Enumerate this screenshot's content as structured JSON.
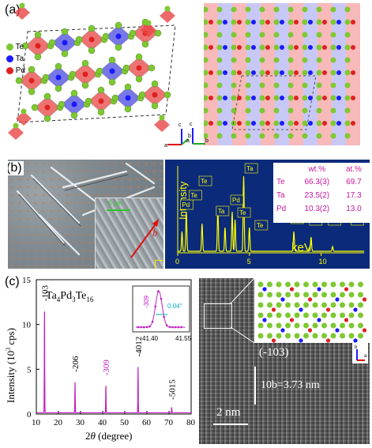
{
  "panel_a": {
    "label": "(a)",
    "legend": [
      {
        "symbol": "Te",
        "color": "#7ec832"
      },
      {
        "symbol": "Ta",
        "color": "#1a1aff"
      },
      {
        "symbol": "Pd",
        "color": "#e02020"
      }
    ],
    "axes_left": {
      "c": "c",
      "b": "b",
      "a": "a"
    },
    "axes_right": {
      "c": "c",
      "b": "b",
      "a": "a"
    }
  },
  "panel_b": {
    "label": "(b)",
    "scale_bar": "5 μm",
    "axis_label": "b",
    "spectrum": {
      "ylabel": "Intensity",
      "xlabel": "keV",
      "ticks": [
        "0",
        "5",
        "10"
      ],
      "peak_labels": [
        "Pd",
        "Te",
        "Te",
        "Ta",
        "Pd",
        "Te",
        "Ta",
        "Te",
        "Ta",
        "Ta",
        "Ta",
        "Ta"
      ],
      "bg_color": "#0b2a7a",
      "trace_color": "#ffff00"
    },
    "table": {
      "headers": [
        "",
        "wt.%",
        "at.%"
      ],
      "rows": [
        [
          "Te",
          "66.3(3)",
          "69.7"
        ],
        [
          "Ta",
          "23.5(2)",
          "17.3"
        ],
        [
          "Pd",
          "10.3(2)",
          "13.0"
        ]
      ]
    }
  },
  "panel_c": {
    "label": "(c)",
    "compound": {
      "a": "Ta",
      "s1": "4",
      "b": "Pd",
      "s2": "3",
      "c": "Te",
      "s3": "16"
    },
    "ylabel": "Intensity (10",
    "ylabel_sup": "3",
    "ylabel_end": " cps)",
    "xlabel_prefix": "2",
    "xlabel_theta": "θ",
    "xlabel_suffix": " (degree)",
    "y_ticks": [
      "0",
      "5",
      "10",
      "15"
    ],
    "x_ticks": [
      "10",
      "20",
      "30",
      "40",
      "50",
      "60",
      "70",
      "80"
    ],
    "peak_labels": [
      "-103",
      "-206",
      "-309",
      "-4012",
      "-5015"
    ],
    "inset": {
      "peak_label": "-309",
      "fwhm": "0.04°",
      "x_ticks": [
        "41.40",
        "41.55"
      ]
    },
    "tem": {
      "plane": "(-103)",
      "spacing_label": "10b=3.73 nm",
      "scale_bar": "2 nm",
      "axes": {
        "c": "c",
        "b": "b",
        "a": "a"
      }
    }
  }
}
